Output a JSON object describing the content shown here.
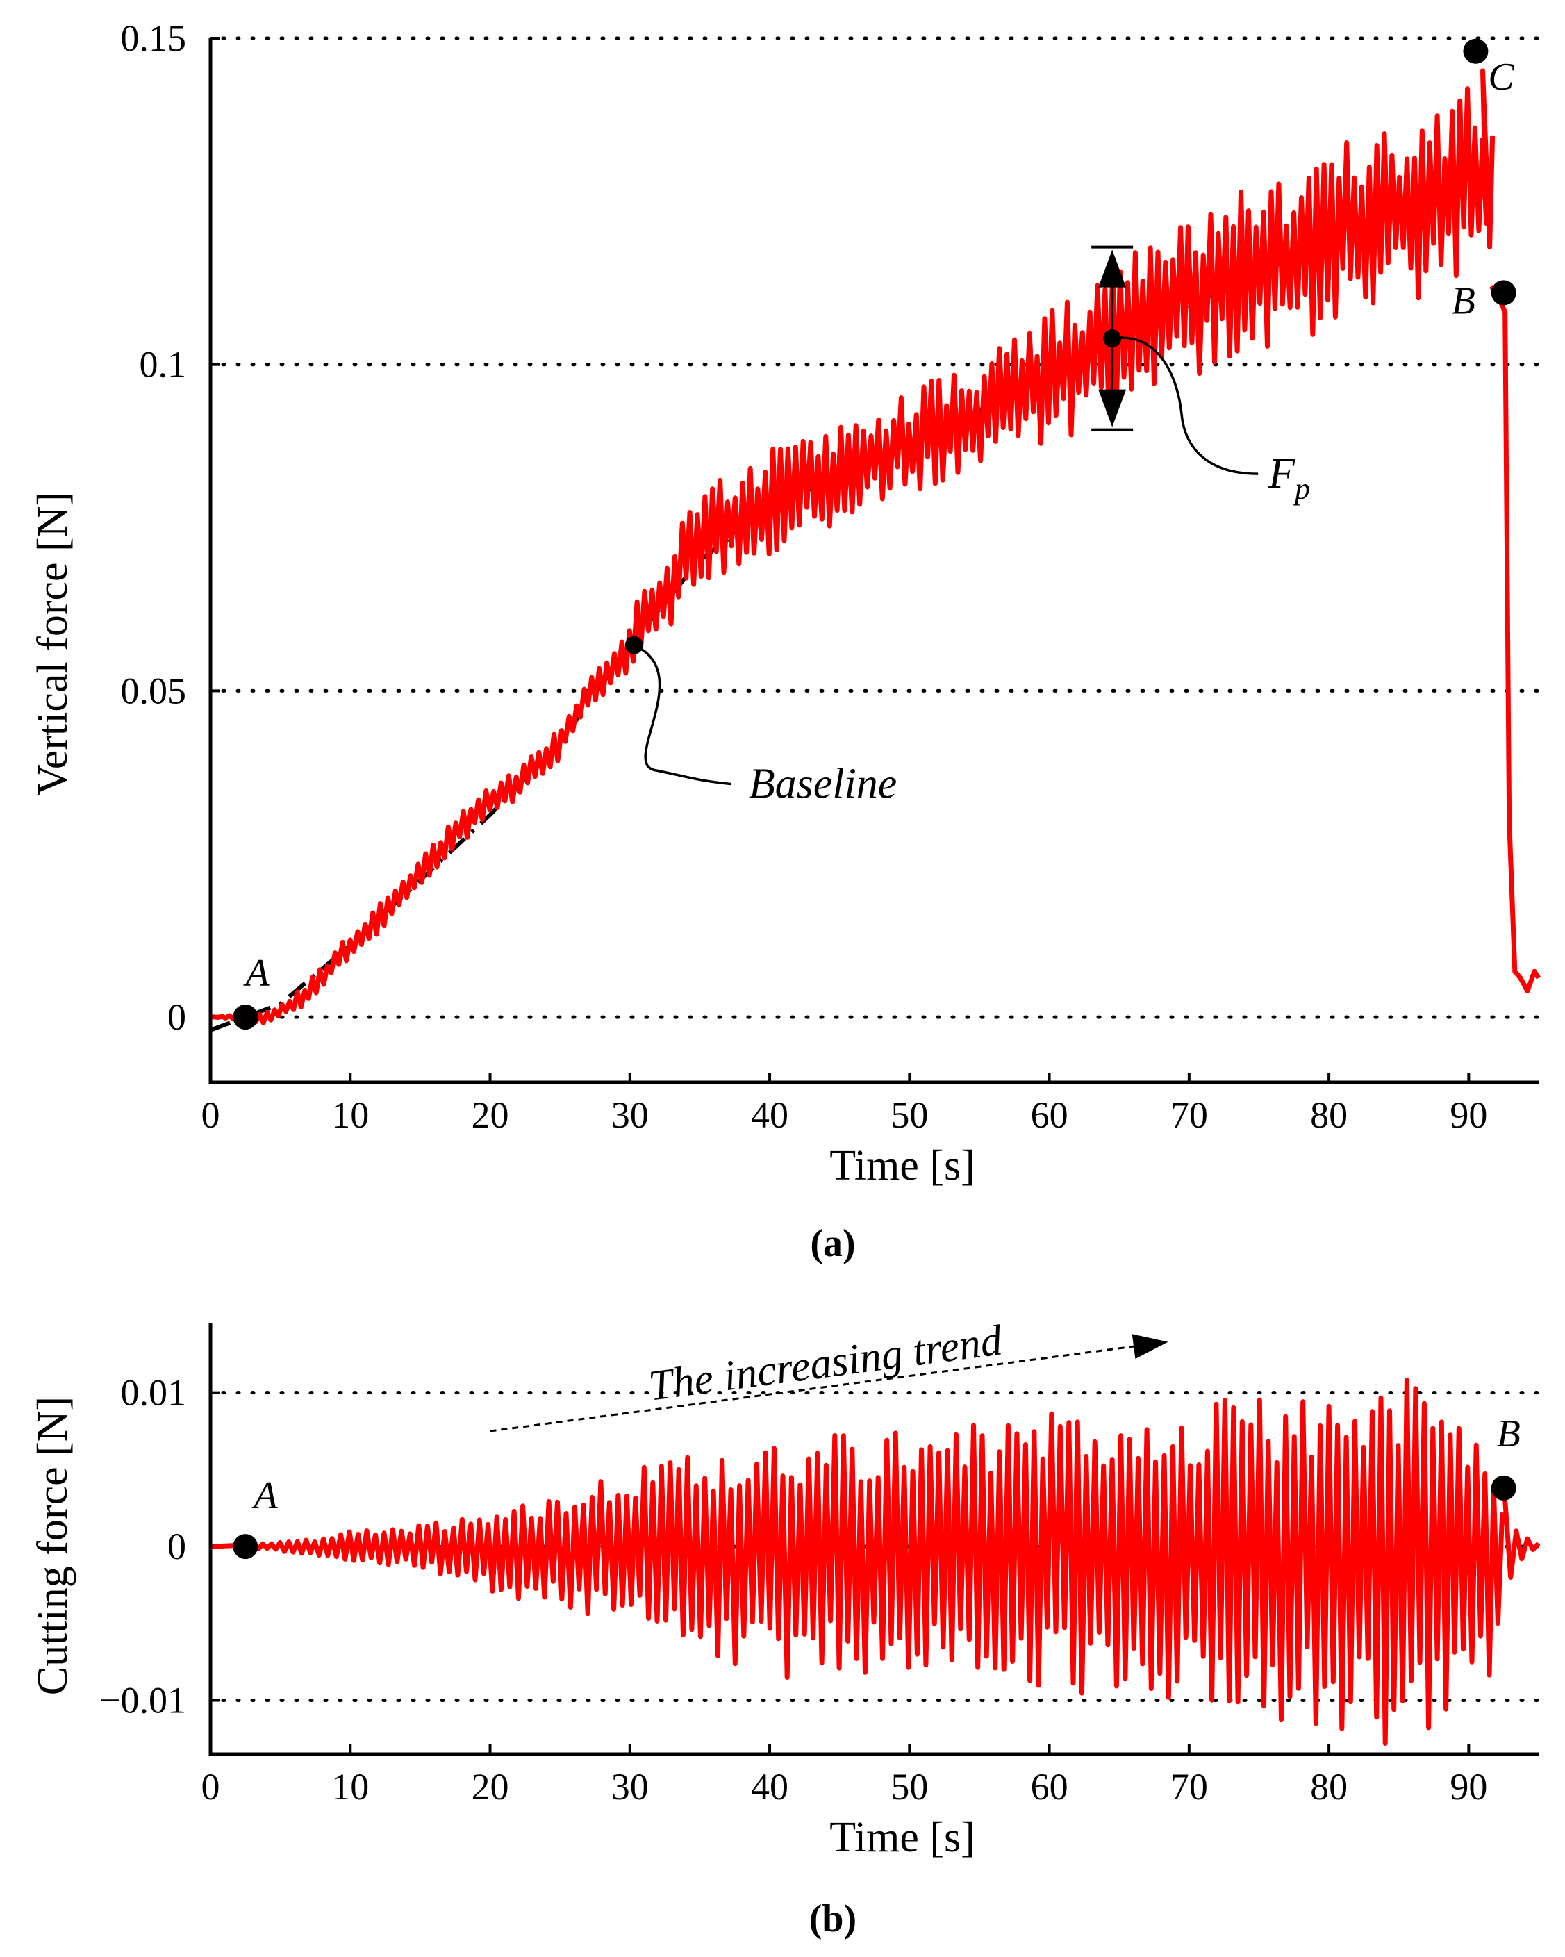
{
  "chart_data": [
    {
      "id": "a",
      "type": "line",
      "caption": "(a)",
      "xlabel": "Time [s]",
      "ylabel": "Vertical force [N]",
      "xlim": [
        0,
        95
      ],
      "ylim": [
        -0.01,
        0.15
      ],
      "xticks": [
        0,
        10,
        20,
        30,
        40,
        50,
        60,
        70,
        80,
        90
      ],
      "yticks": [
        0,
        0.05,
        0.1,
        0.15
      ],
      "ytick_labels": [
        "0",
        "0.05",
        "0.1",
        "0.15"
      ],
      "grid": "horizontal dotted",
      "series": [
        {
          "name": "Vertical force",
          "color": "#ff0000",
          "envelope": {
            "x": [
              0,
              2.5,
              4,
              6,
              8,
              10,
              12,
              15,
              18,
              20,
              22,
              25,
              27,
              29,
              30,
              31,
              33,
              34,
              36,
              40,
              45,
              50,
              55,
              60,
              63,
              65,
              68,
              70,
              75,
              80,
              85,
              88,
              90,
              91.5
            ],
            "center": [
              0.0,
              0.0,
              0.0,
              0.002,
              0.006,
              0.011,
              0.015,
              0.022,
              0.029,
              0.033,
              0.036,
              0.042,
              0.049,
              0.054,
              0.057,
              0.062,
              0.066,
              0.07,
              0.074,
              0.079,
              0.083,
              0.088,
              0.092,
              0.098,
              0.101,
              0.104,
              0.109,
              0.11,
              0.115,
              0.119,
              0.123,
              0.126,
              0.127,
              0.127
            ],
            "amplitude": [
              0.0,
              0.0005,
              0.001,
              0.0015,
              0.002,
              0.002,
              0.0025,
              0.0025,
              0.0025,
              0.0025,
              0.0025,
              0.0025,
              0.003,
              0.003,
              0.004,
              0.005,
              0.006,
              0.007,
              0.008,
              0.008,
              0.008,
              0.008,
              0.009,
              0.01,
              0.011,
              0.012,
              0.012,
              0.012,
              0.013,
              0.014,
              0.014,
              0.015,
              0.016,
              0.015
            ]
          },
          "tail": {
            "x": [
              91.6,
              92.0,
              92.6,
              92.9,
              93.3,
              93.7,
              94.2,
              94.7,
              95.0
            ],
            "y": [
              0.112,
              0.111,
              0.108,
              0.03,
              0.007,
              0.006,
              0.004,
              0.007,
              0.006
            ]
          }
        }
      ],
      "baseline": {
        "x": [
          0,
          5,
          10,
          15,
          20,
          25,
          30,
          35,
          40,
          50,
          60,
          65,
          70,
          80,
          90,
          91.5
        ],
        "y": [
          -0.002,
          0.002,
          0.011,
          0.021,
          0.031,
          0.042,
          0.057,
          0.07,
          0.078,
          0.088,
          0.098,
          0.104,
          0.109,
          0.119,
          0.128,
          0.13
        ]
      },
      "points": [
        {
          "label": "A",
          "x": 2.5,
          "y": 0.0
        },
        {
          "label": "C",
          "x": 90.5,
          "y": 0.148
        },
        {
          "label": "B",
          "x": 92.5,
          "y": 0.111
        }
      ],
      "annotations": {
        "baseline_label": "Baseline",
        "baseline_point": {
          "x": 30.3,
          "y": 0.057
        },
        "fp_label_main": "F",
        "fp_label_sub": "p",
        "fp_point": {
          "x": 64.5,
          "y": 0.104
        },
        "fp_range": [
          0.09,
          0.118
        ]
      }
    },
    {
      "id": "b",
      "type": "line",
      "caption": "(b)",
      "xlabel": "Time [s]",
      "ylabel": "Cutting force [N]",
      "xlim": [
        0,
        95
      ],
      "ylim": [
        -0.0135,
        0.0145
      ],
      "xticks": [
        0,
        10,
        20,
        30,
        40,
        50,
        60,
        70,
        80,
        90
      ],
      "yticks": [
        -0.01,
        0,
        0.01
      ],
      "ytick_labels": [
        "−0.01",
        "0",
        "0.01"
      ],
      "grid": "horizontal dotted",
      "series": [
        {
          "name": "Cutting force",
          "color": "#ff0000",
          "envelope": {
            "x": [
              0,
              2.5,
              5,
              8,
              10,
              15,
              20,
              25,
              30,
              35,
              40,
              50,
              60,
              70,
              80,
              85,
              88,
              91,
              92.5
            ],
            "upper": [
              0.0,
              0.0001,
              0.0003,
              0.0006,
              0.001,
              0.0015,
              0.002,
              0.0035,
              0.005,
              0.006,
              0.007,
              0.008,
              0.009,
              0.0095,
              0.01,
              0.0115,
              0.011,
              0.006,
              0.003
            ],
            "lower": [
              0.0,
              -0.0001,
              -0.0003,
              -0.0006,
              -0.001,
              -0.0015,
              -0.003,
              -0.004,
              -0.005,
              -0.0075,
              -0.0085,
              -0.009,
              -0.0095,
              -0.01,
              -0.012,
              -0.0135,
              -0.0125,
              -0.01,
              -0.005
            ]
          },
          "tail": {
            "x": [
              92.6,
              93.0,
              93.4,
              93.8,
              94.2,
              94.6,
              95.0
            ],
            "y": [
              0.003,
              -0.002,
              0.001,
              -0.0008,
              0.0005,
              -0.0002,
              0.0002
            ]
          }
        }
      ],
      "points": [
        {
          "label": "A",
          "x": 2.5,
          "y": 0.0
        },
        {
          "label": "B",
          "x": 92.5,
          "y": 0.0038
        }
      ],
      "annotations": {
        "trend_label": "The increasing trend",
        "trend_arrow": {
          "x_start": 20,
          "y_start": 0.0075,
          "x_end": 68.5,
          "y_end": 0.0133
        }
      }
    }
  ]
}
